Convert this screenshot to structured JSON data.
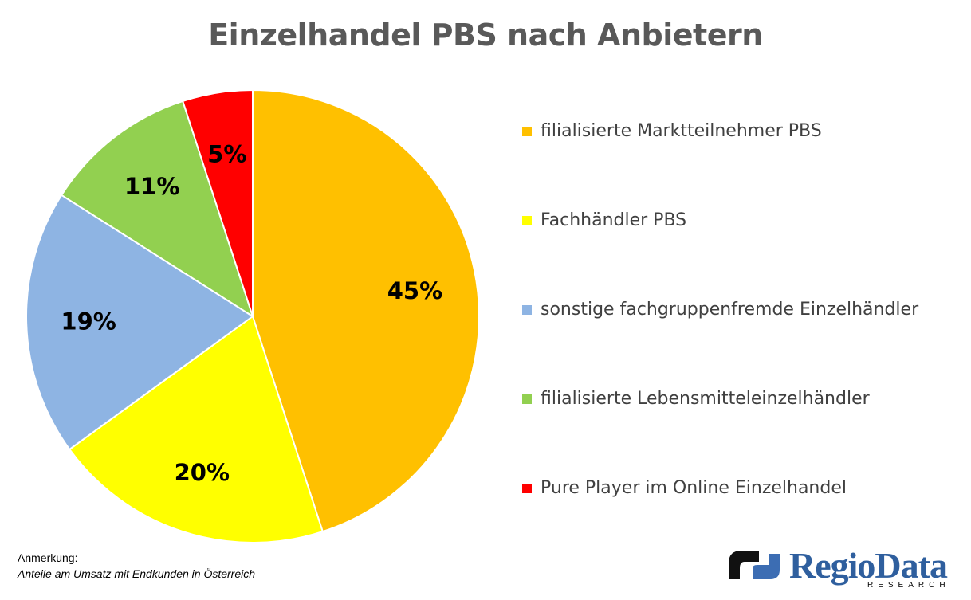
{
  "chart_data": {
    "type": "pie",
    "title": "Einzelhandel PBS nach Anbietern",
    "categories": [
      "filialisierte Marktteilnehmer PBS",
      "Fachhändler PBS",
      "sonstige fachgruppenfremde Einzelhändler",
      "filialisierte Lebensmitteleinzelhändler",
      "Pure Player im Online Einzelhandel"
    ],
    "values": [
      45,
      20,
      19,
      11,
      5
    ],
    "labels": [
      "45%",
      "20%",
      "19%",
      "11%",
      "5%"
    ],
    "colors": [
      "#FFC000",
      "#FFFF00",
      "#8EB4E3",
      "#92D050",
      "#FF0000"
    ],
    "legend_position": "right"
  },
  "note": {
    "heading": "Anmerkung:",
    "body": "Anteile am Umsatz mit Endkunden in Österreich"
  },
  "logo": {
    "text": "RegioData",
    "subtext": "RESEARCH",
    "icon": "regiodata-logo-icon"
  }
}
